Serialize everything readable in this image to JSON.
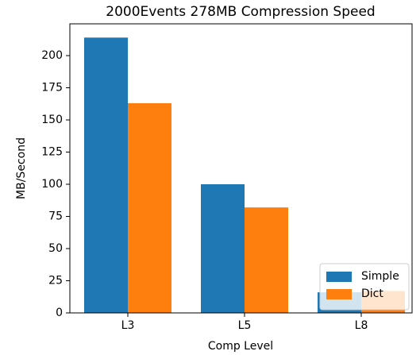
{
  "chart_data": {
    "type": "bar",
    "title": "2000Events 278MB Compression Speed",
    "x_label": "Comp Level",
    "y_label": "MB/Second",
    "categories": [
      "L3",
      "L5",
      "L8"
    ],
    "series": [
      {
        "name": "Simple",
        "color": "#1f77b4",
        "values": [
          214,
          100,
          16
        ]
      },
      {
        "name": "Dict",
        "color": "#ff7f0e",
        "values": [
          163,
          82,
          17
        ]
      }
    ],
    "ylim": [
      0,
      224.7
    ],
    "yticks": [
      0,
      25,
      50,
      75,
      100,
      125,
      150,
      175,
      200
    ],
    "grid": false,
    "legend": "lower right"
  }
}
